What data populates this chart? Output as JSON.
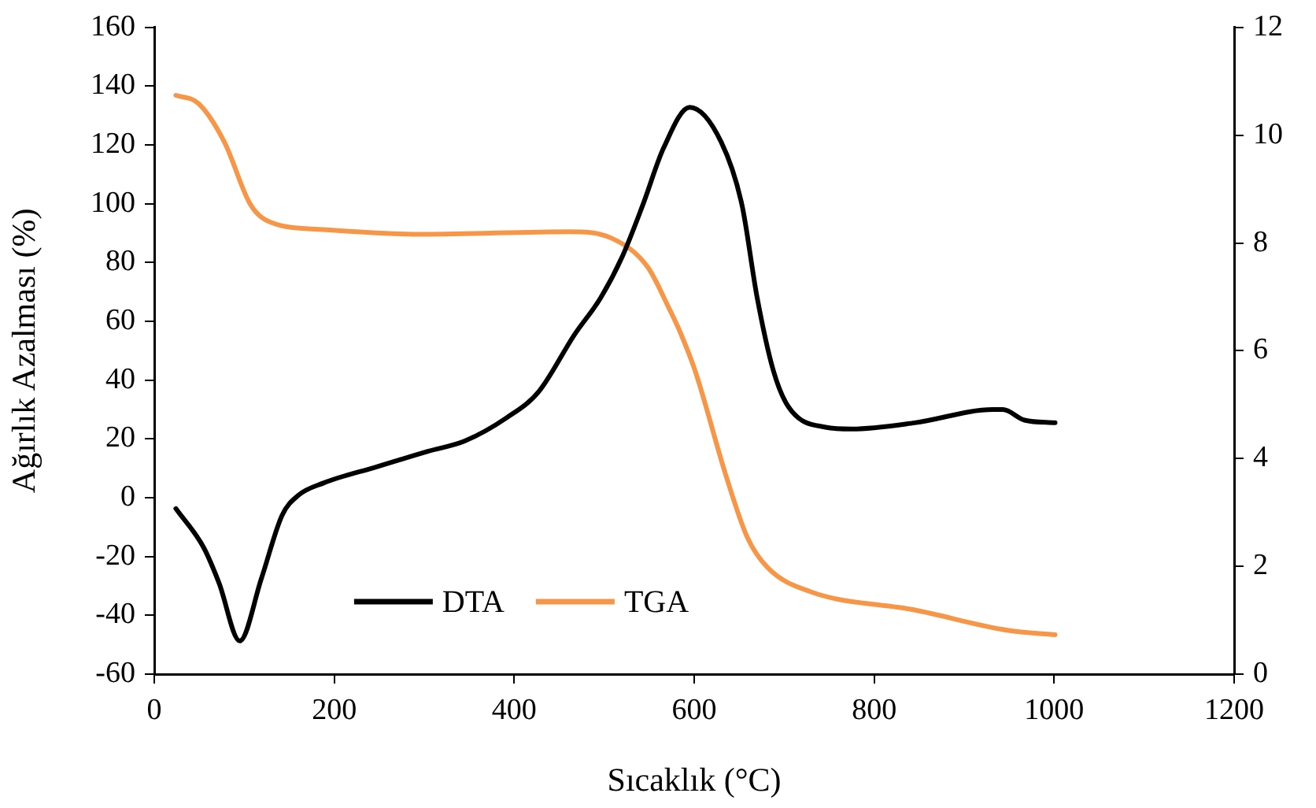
{
  "chart_data": {
    "type": "line",
    "xlabel": "Sıcaklık (°C)",
    "ylabel": "Ağırlık Azalması (%)",
    "xlim": [
      0,
      1200
    ],
    "xticks": [
      0,
      200,
      400,
      600,
      800,
      1000,
      1200
    ],
    "ylim": [
      -60,
      160
    ],
    "yticks": [
      -60,
      -40,
      -20,
      0,
      20,
      40,
      60,
      80,
      100,
      120,
      140,
      160
    ],
    "y2lim": [
      0,
      12
    ],
    "y2ticks": [
      0,
      2,
      4,
      6,
      8,
      10,
      12
    ],
    "grid": false,
    "legend": "bottom",
    "marker": "none",
    "line_style": "solid",
    "series": [
      {
        "name": "DTA",
        "color": "#000000",
        "x": [
          24,
          55,
          72,
          95,
          119,
          142,
          160,
          188,
          247,
          304,
          345,
          392,
          427,
          467,
          496,
          520,
          543,
          566,
          595,
          630,
          653,
          670,
          688,
          705,
          746,
          775,
          845,
          932,
          943,
          967,
          1001
        ],
        "values": [
          -3.7,
          -17,
          -29,
          -48.7,
          -27.5,
          -6,
          0.8,
          5,
          10.5,
          15.8,
          19.3,
          27.3,
          36,
          55.5,
          68,
          82,
          99.7,
          119,
          132.8,
          121,
          99.7,
          68,
          43.2,
          30.8,
          24,
          23.4,
          25.5,
          30,
          30,
          26.4,
          25.5
        ]
      },
      {
        "name": "TGA",
        "color": "#f79646",
        "axis": "y2",
        "x": [
          24,
          49,
          78,
          107,
          130,
          188,
          299,
          461,
          508,
          548,
          572,
          583,
          601,
          635,
          659,
          682,
          729,
          845,
          949,
          1001
        ],
        "values": [
          10.74,
          10.59,
          9.87,
          8.71,
          8.38,
          8.25,
          8.16,
          8.21,
          8.09,
          7.56,
          6.79,
          6.4,
          5.63,
          3.7,
          2.54,
          1.97,
          1.53,
          1.19,
          0.81,
          0.73
        ]
      }
    ]
  }
}
